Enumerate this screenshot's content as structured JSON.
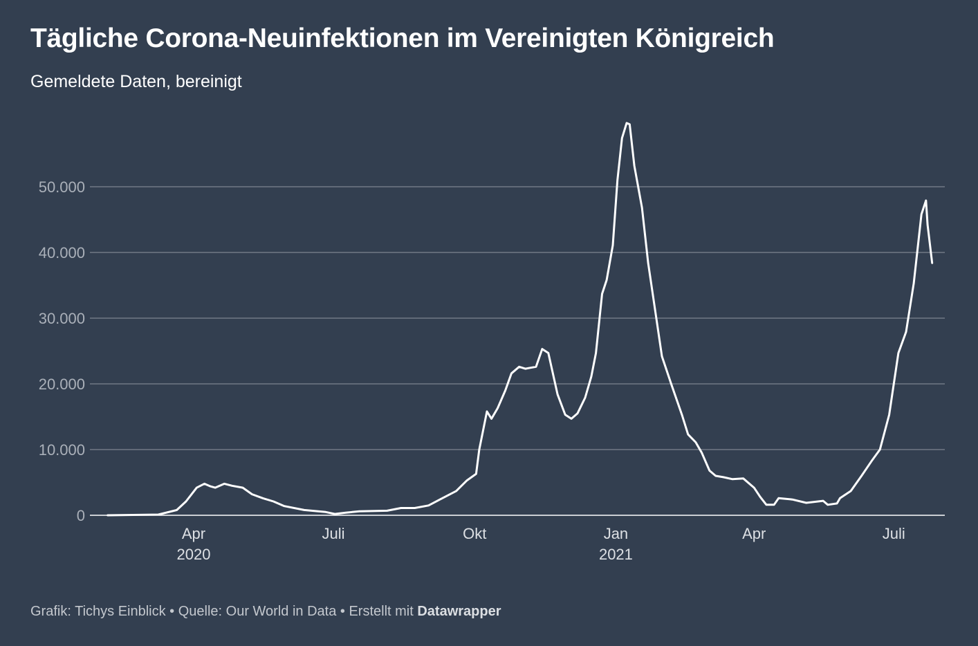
{
  "title": "Tägliche Corona-Neuinfektionen im Vereinigten Königreich",
  "subtitle": "Gemeldete Daten, bereinigt",
  "footer": {
    "prefix": "Grafik: Tichys Einblick • Quelle: Our World in Data • Erstellt mit ",
    "brand": "Datawrapper"
  },
  "colors": {
    "background": "#333f50",
    "line": "#ffffff",
    "grid": "#7d8590"
  },
  "chart_data": {
    "type": "line",
    "title": "Tägliche Corona-Neuinfektionen im Vereinigten Königreich",
    "xlabel": "",
    "ylabel": "",
    "x_unit": "days since 2020-01-01",
    "ylim": [
      0,
      60000
    ],
    "xlim": [
      35,
      572
    ],
    "grid": true,
    "yticks": [
      {
        "value": 0,
        "label": "0"
      },
      {
        "value": 10000,
        "label": "10.000"
      },
      {
        "value": 20000,
        "label": "20.000"
      },
      {
        "value": 30000,
        "label": "30.000"
      },
      {
        "value": 40000,
        "label": "40.000"
      },
      {
        "value": 50000,
        "label": "50.000"
      }
    ],
    "xticks": [
      {
        "value": 91,
        "label": "Apr",
        "sub": "2020"
      },
      {
        "value": 182,
        "label": "Juli",
        "sub": ""
      },
      {
        "value": 274,
        "label": "Okt",
        "sub": ""
      },
      {
        "value": 366,
        "label": "Jan",
        "sub": "2021"
      },
      {
        "value": 456,
        "label": "Apr",
        "sub": ""
      },
      {
        "value": 547,
        "label": "Juli",
        "sub": ""
      }
    ],
    "series": [
      {
        "name": "Neuinfektionen",
        "x": [
          35,
          68,
          80,
          86,
          93,
          98,
          102,
          105,
          111,
          116,
          123,
          129,
          136,
          143,
          150,
          163,
          177,
          183,
          190,
          199,
          217,
          226,
          235,
          244,
          253,
          262,
          269,
          275,
          277,
          282,
          285,
          289,
          294,
          298,
          303,
          307,
          314,
          318,
          322,
          328,
          333,
          337,
          341,
          346,
          350,
          353,
          357,
          360,
          364,
          367,
          370,
          373,
          375,
          378,
          383,
          387,
          392,
          396,
          402,
          409,
          413,
          418,
          422,
          427,
          431,
          436,
          442,
          449,
          456,
          460,
          464,
          469,
          472,
          481,
          490,
          501,
          504,
          510,
          512,
          519,
          526,
          533,
          538,
          544,
          550,
          555,
          560,
          565,
          568,
          569,
          572
        ],
        "y": [
          0,
          100,
          800,
          2100,
          4200,
          4800,
          4400,
          4200,
          4800,
          4500,
          4200,
          3200,
          2600,
          2100,
          1400,
          800,
          500,
          200,
          400,
          600,
          700,
          1100,
          1100,
          1500,
          2600,
          3700,
          5300,
          6300,
          10000,
          15800,
          14700,
          16300,
          19000,
          21600,
          22600,
          22300,
          22600,
          25300,
          24700,
          18400,
          15300,
          14700,
          15500,
          17900,
          21100,
          24700,
          33700,
          35800,
          41100,
          51000,
          57400,
          59700,
          59500,
          53200,
          46800,
          38400,
          30500,
          24200,
          20000,
          15300,
          12300,
          11100,
          9500,
          6800,
          6000,
          5800,
          5500,
          5600,
          4200,
          2800,
          1600,
          1600,
          2600,
          2400,
          1900,
          2200,
          1600,
          1800,
          2600,
          3700,
          6000,
          8400,
          10000,
          15300,
          24700,
          27900,
          35300,
          45800,
          47900,
          44200,
          38400
        ]
      }
    ]
  }
}
